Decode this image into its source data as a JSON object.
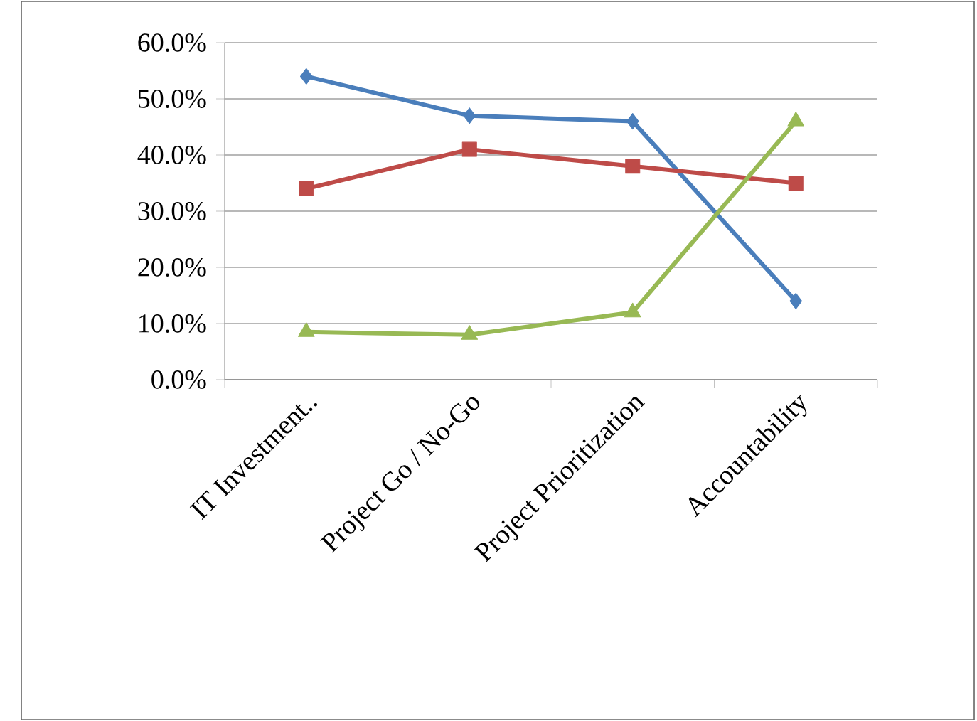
{
  "chart_data": {
    "type": "line",
    "categories": [
      "IT Investment..",
      "Project Go / No-Go",
      "Project Prioritization",
      "Accountability"
    ],
    "series": [
      {
        "color": "#4a7ebb",
        "marker": "diamond",
        "values": [
          54,
          47,
          46,
          14
        ]
      },
      {
        "color": "#be4b48",
        "marker": "square",
        "values": [
          34,
          41,
          38,
          35
        ]
      },
      {
        "color": "#98b954",
        "marker": "triangle",
        "values": [
          8.5,
          8,
          12,
          46
        ]
      }
    ],
    "ylim": [
      0,
      60
    ],
    "yticks": [
      {
        "value": 0,
        "label": "0.0%"
      },
      {
        "value": 10,
        "label": "10.0%"
      },
      {
        "value": 20,
        "label": "20.0%"
      },
      {
        "value": 30,
        "label": "30.0%"
      },
      {
        "value": 40,
        "label": "40.0%"
      },
      {
        "value": 50,
        "label": "50.0%"
      },
      {
        "value": 60,
        "label": "60.0%"
      }
    ],
    "grid": "y",
    "legend": false,
    "line_style": "solid"
  }
}
